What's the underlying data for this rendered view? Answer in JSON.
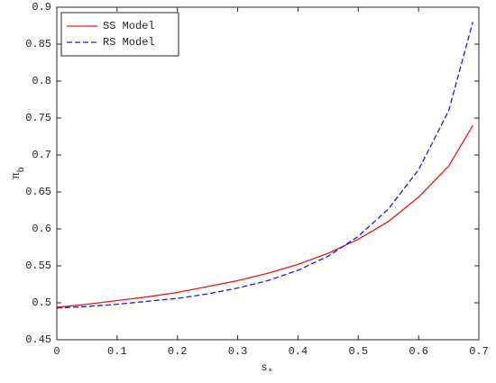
{
  "chart_data": {
    "type": "line",
    "x_label": {
      "text": "s",
      "subscript": "*"
    },
    "y_label": {
      "text": "π",
      "subscript": "b"
    },
    "x": [
      0,
      0.05,
      0.1,
      0.15,
      0.2,
      0.25,
      0.3,
      0.35,
      0.4,
      0.45,
      0.5,
      0.55,
      0.6,
      0.65,
      0.69
    ],
    "series": [
      {
        "name": "SS Model",
        "color": "#e41a1c",
        "dash": false,
        "values": [
          0.494,
          0.498,
          0.503,
          0.508,
          0.514,
          0.522,
          0.53,
          0.54,
          0.552,
          0.567,
          0.586,
          0.61,
          0.643,
          0.685,
          0.74
        ]
      },
      {
        "name": "RS Model",
        "color": "#1a1ae6",
        "dash": true,
        "values": [
          0.493,
          0.495,
          0.498,
          0.502,
          0.506,
          0.512,
          0.52,
          0.53,
          0.544,
          0.563,
          0.59,
          0.627,
          0.68,
          0.76,
          0.88
        ]
      }
    ],
    "xlim": [
      0,
      0.7
    ],
    "xticks": [
      0,
      0.1,
      0.2,
      0.3,
      0.4,
      0.5,
      0.6,
      0.7
    ],
    "ylim": [
      0.45,
      0.9
    ],
    "yticks": [
      0.45,
      0.5,
      0.55,
      0.6,
      0.65,
      0.7,
      0.75,
      0.8,
      0.85,
      0.9
    ],
    "legend": "upper left"
  }
}
